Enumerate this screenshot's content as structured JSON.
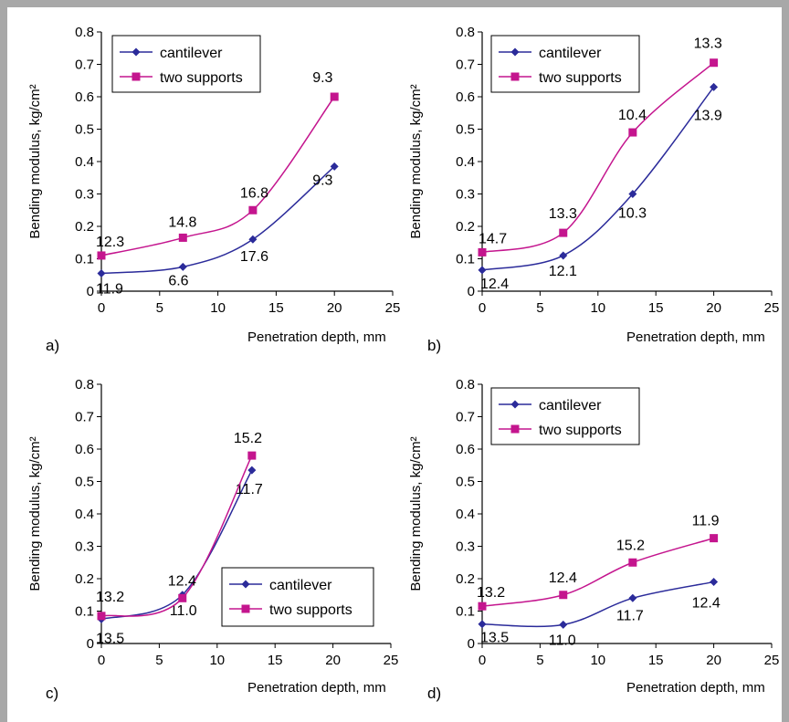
{
  "series_colors": {
    "cantilever": "#2b2b9a",
    "two supports": "#c4158e"
  },
  "chart_data": [
    {
      "type": "line",
      "panel_label": "a)",
      "xlabel": "Penetration depth, mm",
      "ylabel": "Bending modulus, kg/cm²",
      "xlim": [
        0,
        25
      ],
      "ylim": [
        0,
        0.8
      ],
      "xticks": [
        "0",
        "5",
        "10",
        "15",
        "20",
        "25"
      ],
      "yticks": [
        "0",
        "0.1",
        "0.2",
        "0.3",
        "0.4",
        "0.5",
        "0.6",
        "0.7",
        "0.8"
      ],
      "legend": "top-left",
      "series": [
        {
          "name": "cantilever",
          "x": [
            0,
            7,
            13,
            20
          ],
          "y": [
            0.055,
            0.075,
            0.16,
            0.385
          ],
          "labels": [
            "11.9",
            "6.6",
            "17.6",
            "9.3"
          ]
        },
        {
          "name": "two supports",
          "x": [
            0,
            7,
            13,
            20
          ],
          "y": [
            0.11,
            0.165,
            0.25,
            0.6
          ],
          "labels": [
            "12.3",
            "14.8",
            "16.8",
            "9.3"
          ]
        }
      ]
    },
    {
      "type": "line",
      "panel_label": "b)",
      "xlabel": "Penetration depth, mm",
      "ylabel": "Bending modulus, kg/cm²",
      "xlim": [
        0,
        25
      ],
      "ylim": [
        0,
        0.8
      ],
      "xticks": [
        "0",
        "5",
        "10",
        "15",
        "20",
        "25"
      ],
      "yticks": [
        "0",
        "0.1",
        "0.2",
        "0.3",
        "0.4",
        "0.5",
        "0.6",
        "0.7",
        "0.8"
      ],
      "legend": "top-left",
      "series": [
        {
          "name": "cantilever",
          "x": [
            0,
            7,
            13,
            20
          ],
          "y": [
            0.065,
            0.11,
            0.3,
            0.63
          ],
          "labels": [
            "12.4",
            "12.1",
            "10.3",
            "13.9"
          ]
        },
        {
          "name": "two supports",
          "x": [
            0,
            7,
            13,
            20
          ],
          "y": [
            0.12,
            0.18,
            0.49,
            0.705
          ],
          "labels": [
            "14.7",
            "13.3",
            "10.4",
            "13.3"
          ]
        }
      ]
    },
    {
      "type": "line",
      "panel_label": "c)",
      "xlabel": "Penetration depth, mm",
      "ylabel": "Bending modulus, kg/cm²",
      "xlim": [
        0,
        25
      ],
      "ylim": [
        0,
        0.8
      ],
      "xticks": [
        "0",
        "5",
        "10",
        "15",
        "20",
        "25"
      ],
      "yticks": [
        "0",
        "0.1",
        "0.2",
        "0.3",
        "0.4",
        "0.5",
        "0.6",
        "0.7",
        "0.8"
      ],
      "legend": "bottom-right",
      "series": [
        {
          "name": "cantilever",
          "x": [
            0,
            7,
            13
          ],
          "y": [
            0.075,
            0.15,
            0.535
          ],
          "labels": [
            "13.5",
            "11.0",
            "11.7"
          ]
        },
        {
          "name": "two supports",
          "x": [
            0,
            7,
            13
          ],
          "y": [
            0.085,
            0.14,
            0.58
          ],
          "labels": [
            "13.2",
            "12.4",
            "15.2"
          ]
        }
      ]
    },
    {
      "type": "line",
      "panel_label": "d)",
      "xlabel": "Penetration depth, mm",
      "ylabel": "Bending modulus, kg/cm²",
      "xlim": [
        0,
        25
      ],
      "ylim": [
        0,
        0.8
      ],
      "xticks": [
        "0",
        "5",
        "10",
        "15",
        "20",
        "25"
      ],
      "yticks": [
        "0",
        "0.1",
        "0.2",
        "0.3",
        "0.4",
        "0.5",
        "0.6",
        "0.7",
        "0.8"
      ],
      "legend": "top-left",
      "series": [
        {
          "name": "cantilever",
          "x": [
            0,
            7,
            13,
            20
          ],
          "y": [
            0.06,
            0.058,
            0.14,
            0.19
          ],
          "labels": [
            "13.5",
            "11.0",
            "11.7",
            "12.4"
          ]
        },
        {
          "name": "two supports",
          "x": [
            0,
            7,
            13,
            20
          ],
          "y": [
            0.115,
            0.15,
            0.25,
            0.325
          ],
          "labels": [
            "13.2",
            "12.4",
            "15.2",
            "11.9"
          ]
        }
      ]
    }
  ]
}
